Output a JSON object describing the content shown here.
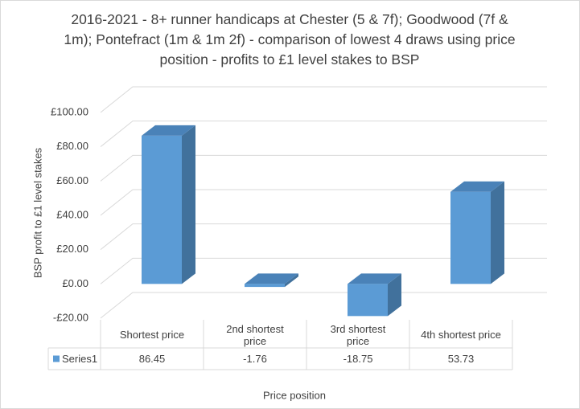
{
  "chart_data": {
    "type": "bar3d",
    "title": "2016-2021 - 8+ runner handicaps at Chester (5 & 7f); Goodwood (7f & 1m); Pontefract (1m & 1m 2f) - comparison of lowest 4 draws using price position - profits to £1 level stakes to BSP",
    "categories": [
      "Shortest price",
      "2nd shortest price",
      "3rd shortest price",
      "4th shortest price"
    ],
    "series": [
      {
        "name": "Series1",
        "color": "#5b9bd5",
        "values": [
          86.45,
          -1.76,
          -18.75,
          53.73
        ]
      }
    ],
    "ylim": [
      -20,
      100
    ],
    "yticks": [
      {
        "value": -20,
        "label": "-£20.00"
      },
      {
        "value": 0,
        "label": "£0.00"
      },
      {
        "value": 20,
        "label": "£20.00"
      },
      {
        "value": 40,
        "label": "£40.00"
      },
      {
        "value": 60,
        "label": "£60.00"
      },
      {
        "value": 80,
        "label": "£80.00"
      },
      {
        "value": 100,
        "label": "£100.00"
      }
    ],
    "y_label": "BSP profit to £1 level stakes",
    "x_label": "Price position",
    "grid": true,
    "data_table": true
  }
}
